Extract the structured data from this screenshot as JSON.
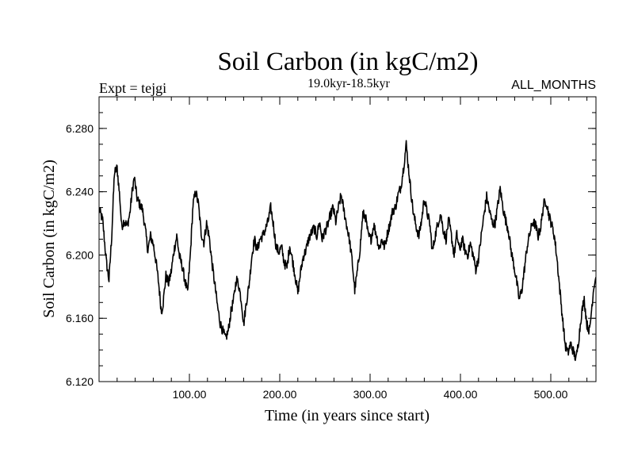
{
  "chart_data": {
    "type": "line",
    "title": "Soil Carbon (in kgC/m2)",
    "subtitle": "19.0kyr-18.5kyr",
    "expt_label": "Expt = tejgi",
    "months_label": "ALL_MONTHS",
    "xlabel": "Time (in years since start)",
    "ylabel": "Soil Carbon (in kgC/m2)",
    "xlim": [
      0,
      550
    ],
    "ylim": [
      6.12,
      6.3
    ],
    "x_major_ticks": [
      100,
      200,
      300,
      400,
      500
    ],
    "x_tick_labels": [
      "100.00",
      "200.00",
      "300.00",
      "400.00",
      "500.00"
    ],
    "x_minor_step": 20,
    "y_major_ticks": [
      6.12,
      6.16,
      6.2,
      6.24,
      6.28
    ],
    "y_tick_labels": [
      "6.120",
      "6.160",
      "6.200",
      "6.240",
      "6.280"
    ],
    "y_minor_step": 0.01,
    "line_color": "#000000",
    "series": [
      {
        "name": "Soil Carbon",
        "keypoints": [
          [
            0,
            6.229
          ],
          [
            4,
            6.222
          ],
          [
            8,
            6.196
          ],
          [
            11,
            6.184
          ],
          [
            14,
            6.212
          ],
          [
            17,
            6.252
          ],
          [
            20,
            6.255
          ],
          [
            23,
            6.236
          ],
          [
            25,
            6.218
          ],
          [
            28,
            6.222
          ],
          [
            31,
            6.218
          ],
          [
            34,
            6.226
          ],
          [
            37,
            6.242
          ],
          [
            39,
            6.249
          ],
          [
            42,
            6.236
          ],
          [
            45,
            6.232
          ],
          [
            48,
            6.229
          ],
          [
            51,
            6.217
          ],
          [
            54,
            6.203
          ],
          [
            57,
            6.212
          ],
          [
            60,
            6.207
          ],
          [
            63,
            6.196
          ],
          [
            66,
            6.182
          ],
          [
            69,
            6.164
          ],
          [
            71,
            6.17
          ],
          [
            74,
            6.187
          ],
          [
            77,
            6.182
          ],
          [
            80,
            6.19
          ],
          [
            83,
            6.203
          ],
          [
            86,
            6.212
          ],
          [
            89,
            6.199
          ],
          [
            92,
            6.193
          ],
          [
            95,
            6.184
          ],
          [
            98,
            6.176
          ],
          [
            101,
            6.2
          ],
          [
            104,
            6.232
          ],
          [
            107,
            6.24
          ],
          [
            110,
            6.232
          ],
          [
            113,
            6.214
          ],
          [
            116,
            6.208
          ],
          [
            119,
            6.22
          ],
          [
            122,
            6.211
          ],
          [
            125,
            6.195
          ],
          [
            128,
            6.182
          ],
          [
            131,
            6.168
          ],
          [
            134,
            6.157
          ],
          [
            137,
            6.152
          ],
          [
            140,
            6.147
          ],
          [
            143,
            6.152
          ],
          [
            146,
            6.164
          ],
          [
            149,
            6.172
          ],
          [
            152,
            6.185
          ],
          [
            155,
            6.18
          ],
          [
            158,
            6.169
          ],
          [
            160,
            6.156
          ],
          [
            163,
            6.17
          ],
          [
            166,
            6.181
          ],
          [
            169,
            6.199
          ],
          [
            172,
            6.21
          ],
          [
            175,
            6.203
          ],
          [
            178,
            6.21
          ],
          [
            181,
            6.212
          ],
          [
            184,
            6.216
          ],
          [
            187,
            6.221
          ],
          [
            190,
            6.23
          ],
          [
            193,
            6.219
          ],
          [
            196,
            6.205
          ],
          [
            199,
            6.202
          ],
          [
            202,
            6.205
          ],
          [
            205,
            6.195
          ],
          [
            208,
            6.192
          ],
          [
            211,
            6.206
          ],
          [
            214,
            6.197
          ],
          [
            217,
            6.187
          ],
          [
            220,
            6.176
          ],
          [
            223,
            6.189
          ],
          [
            226,
            6.199
          ],
          [
            229,
            6.203
          ],
          [
            232,
            6.21
          ],
          [
            235,
            6.214
          ],
          [
            238,
            6.217
          ],
          [
            241,
            6.212
          ],
          [
            244,
            6.221
          ],
          [
            247,
            6.21
          ],
          [
            250,
            6.215
          ],
          [
            253,
            6.219
          ],
          [
            256,
            6.225
          ],
          [
            259,
            6.23
          ],
          [
            262,
            6.221
          ],
          [
            265,
            6.23
          ],
          [
            268,
            6.238
          ],
          [
            271,
            6.228
          ],
          [
            274,
            6.219
          ],
          [
            277,
            6.21
          ],
          [
            280,
            6.197
          ],
          [
            283,
            6.178
          ],
          [
            286,
            6.19
          ],
          [
            289,
            6.205
          ],
          [
            292,
            6.226
          ],
          [
            295,
            6.224
          ],
          [
            298,
            6.212
          ],
          [
            301,
            6.21
          ],
          [
            304,
            6.219
          ],
          [
            307,
            6.213
          ],
          [
            310,
            6.204
          ],
          [
            313,
            6.21
          ],
          [
            316,
            6.205
          ],
          [
            319,
            6.213
          ],
          [
            322,
            6.22
          ],
          [
            325,
            6.228
          ],
          [
            328,
            6.23
          ],
          [
            331,
            6.238
          ],
          [
            334,
            6.243
          ],
          [
            337,
            6.255
          ],
          [
            340,
            6.27
          ],
          [
            342,
            6.258
          ],
          [
            345,
            6.241
          ],
          [
            348,
            6.226
          ],
          [
            351,
            6.218
          ],
          [
            354,
            6.212
          ],
          [
            357,
            6.222
          ],
          [
            360,
            6.236
          ],
          [
            363,
            6.227
          ],
          [
            366,
            6.22
          ],
          [
            369,
            6.202
          ],
          [
            372,
            6.212
          ],
          [
            375,
            6.22
          ],
          [
            378,
            6.226
          ],
          [
            381,
            6.216
          ],
          [
            384,
            6.21
          ],
          [
            387,
            6.222
          ],
          [
            390,
            6.212
          ],
          [
            393,
            6.2
          ],
          [
            396,
            6.213
          ],
          [
            399,
            6.203
          ],
          [
            402,
            6.21
          ],
          [
            405,
            6.203
          ],
          [
            408,
            6.2
          ],
          [
            411,
            6.207
          ],
          [
            414,
            6.2
          ],
          [
            417,
            6.191
          ],
          [
            420,
            6.198
          ],
          [
            423,
            6.212
          ],
          [
            426,
            6.225
          ],
          [
            429,
            6.237
          ],
          [
            432,
            6.228
          ],
          [
            435,
            6.221
          ],
          [
            438,
            6.219
          ],
          [
            441,
            6.23
          ],
          [
            444,
            6.242
          ],
          [
            447,
            6.23
          ],
          [
            450,
            6.222
          ],
          [
            453,
            6.216
          ],
          [
            456,
            6.203
          ],
          [
            459,
            6.194
          ],
          [
            462,
            6.184
          ],
          [
            465,
            6.172
          ],
          [
            468,
            6.178
          ],
          [
            471,
            6.192
          ],
          [
            474,
            6.206
          ],
          [
            477,
            6.214
          ],
          [
            480,
            6.221
          ],
          [
            483,
            6.219
          ],
          [
            486,
            6.212
          ],
          [
            489,
            6.218
          ],
          [
            492,
            6.232
          ],
          [
            495,
            6.234
          ],
          [
            498,
            6.225
          ],
          [
            501,
            6.219
          ],
          [
            504,
            6.212
          ],
          [
            507,
            6.197
          ],
          [
            510,
            6.178
          ],
          [
            513,
            6.16
          ],
          [
            516,
            6.143
          ],
          [
            519,
            6.138
          ],
          [
            522,
            6.144
          ],
          [
            525,
            6.139
          ],
          [
            528,
            6.134
          ],
          [
            531,
            6.147
          ],
          [
            534,
            6.163
          ],
          [
            537,
            6.172
          ],
          [
            540,
            6.156
          ],
          [
            543,
            6.152
          ],
          [
            546,
            6.171
          ],
          [
            548,
            6.182
          ],
          [
            550,
            6.186
          ]
        ]
      }
    ]
  }
}
